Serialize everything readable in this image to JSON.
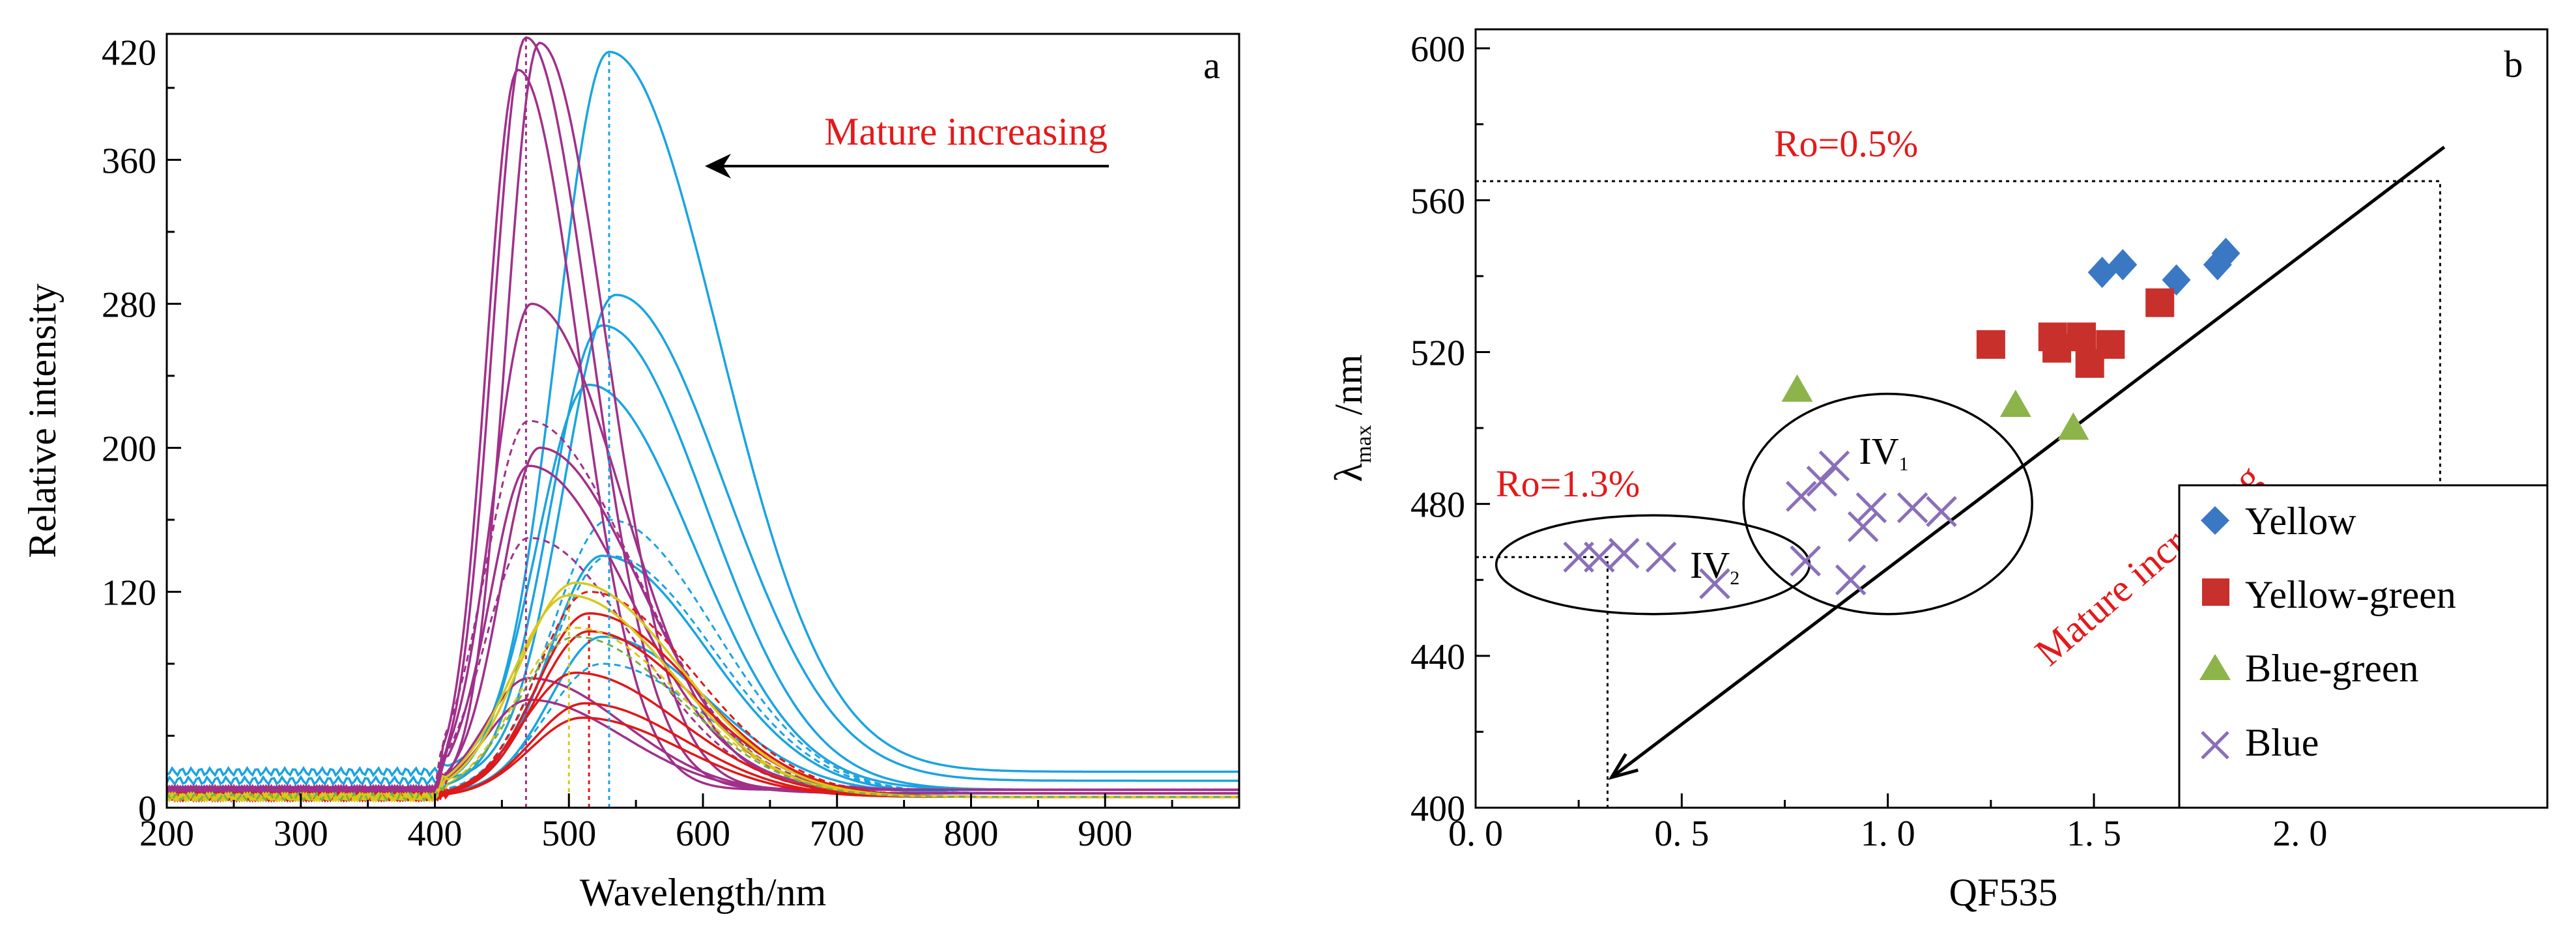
{
  "colors": {
    "blue": "#1BA3E0",
    "purple": "#A0308A",
    "red": "#E01818",
    "yellow": "#D8C81A",
    "green": "#77B04A",
    "black": "#000000",
    "annot_red": "#E31A1C",
    "diamond": "#3A78C4",
    "square": "#C8302C",
    "triangle": "#8CB44A",
    "cross": "#8A6FB8"
  },
  "chart_data": [
    {
      "type": "line",
      "panel_label": "a",
      "xlabel": "Wavelength/nm",
      "ylabel": "Relative intensity",
      "xlim": [
        200,
        1000
      ],
      "ylim": [
        0,
        430
      ],
      "xticks": [
        "200",
        "300",
        "400",
        "500",
        "600",
        "700",
        "800",
        "900"
      ],
      "yticks": [
        "0",
        "120",
        "200",
        "280",
        "360",
        "420"
      ],
      "annotation": "Mature increasing",
      "series": [
        {
          "name": "blue-1",
          "color": "blue",
          "peak_x": 530,
          "peak_y": 420,
          "width_l": 55,
          "width_r": 115,
          "baseline": 20,
          "dashed": false
        },
        {
          "name": "blue-2",
          "color": "blue",
          "peak_x": 535,
          "peak_y": 285,
          "width_l": 55,
          "width_r": 115,
          "baseline": 15,
          "dashed": false
        },
        {
          "name": "blue-3",
          "color": "blue",
          "peak_x": 525,
          "peak_y": 268,
          "width_l": 55,
          "width_r": 110,
          "baseline": 10,
          "dashed": false
        },
        {
          "name": "blue-4",
          "color": "blue",
          "peak_x": 515,
          "peak_y": 235,
          "width_l": 55,
          "width_r": 110,
          "baseline": 10,
          "dashed": false
        },
        {
          "name": "blue-5",
          "color": "blue",
          "peak_x": 525,
          "peak_y": 140,
          "width_l": 55,
          "width_r": 110,
          "baseline": 8,
          "dashed": false
        },
        {
          "name": "blue-6",
          "color": "blue",
          "peak_x": 525,
          "peak_y": 95,
          "width_l": 55,
          "width_r": 110,
          "baseline": 8,
          "dashed": false
        },
        {
          "name": "blue-d1",
          "color": "blue",
          "peak_x": 530,
          "peak_y": 160,
          "width_l": 60,
          "width_r": 110,
          "baseline": 8,
          "dashed": true
        },
        {
          "name": "blue-d2",
          "color": "blue",
          "peak_x": 530,
          "peak_y": 140,
          "width_l": 60,
          "width_r": 110,
          "baseline": 8,
          "dashed": true
        },
        {
          "name": "blue-d3",
          "color": "blue",
          "peak_x": 525,
          "peak_y": 80,
          "width_l": 60,
          "width_r": 110,
          "baseline": 6,
          "dashed": true
        },
        {
          "name": "purple-1",
          "color": "purple",
          "peak_x": 468,
          "peak_y": 428,
          "width_l": 35,
          "width_r": 68,
          "baseline": 10,
          "dashed": false
        },
        {
          "name": "purple-2",
          "color": "purple",
          "peak_x": 478,
          "peak_y": 425,
          "width_l": 35,
          "width_r": 70,
          "baseline": 10,
          "dashed": false
        },
        {
          "name": "purple-3",
          "color": "purple",
          "peak_x": 462,
          "peak_y": 410,
          "width_l": 33,
          "width_r": 64,
          "baseline": 10,
          "dashed": false
        },
        {
          "name": "purple-4",
          "color": "purple",
          "peak_x": 472,
          "peak_y": 280,
          "width_l": 40,
          "width_r": 95,
          "baseline": 10,
          "dashed": false
        },
        {
          "name": "purple-5",
          "color": "purple",
          "peak_x": 478,
          "peak_y": 200,
          "width_l": 40,
          "width_r": 105,
          "baseline": 10,
          "dashed": false
        },
        {
          "name": "purple-6",
          "color": "purple",
          "peak_x": 470,
          "peak_y": 190,
          "width_l": 40,
          "width_r": 105,
          "baseline": 10,
          "dashed": false
        },
        {
          "name": "purple-7",
          "color": "purple",
          "peak_x": 470,
          "peak_y": 72,
          "width_l": 45,
          "width_r": 100,
          "baseline": 8,
          "dashed": false
        },
        {
          "name": "purple-8",
          "color": "purple",
          "peak_x": 470,
          "peak_y": 60,
          "width_l": 45,
          "width_r": 100,
          "baseline": 8,
          "dashed": false
        },
        {
          "name": "purple-d1",
          "color": "purple",
          "peak_x": 470,
          "peak_y": 215,
          "width_l": 45,
          "width_r": 110,
          "baseline": 10,
          "dashed": true
        },
        {
          "name": "purple-d2",
          "color": "purple",
          "peak_x": 470,
          "peak_y": 150,
          "width_l": 45,
          "width_r": 110,
          "baseline": 8,
          "dashed": true
        },
        {
          "name": "red-1",
          "color": "red",
          "peak_x": 515,
          "peak_y": 108,
          "width_l": 55,
          "width_r": 110,
          "baseline": 6,
          "dashed": false
        },
        {
          "name": "red-2",
          "color": "red",
          "peak_x": 515,
          "peak_y": 98,
          "width_l": 55,
          "width_r": 110,
          "baseline": 6,
          "dashed": false
        },
        {
          "name": "red-3",
          "color": "red",
          "peak_x": 505,
          "peak_y": 75,
          "width_l": 55,
          "width_r": 110,
          "baseline": 6,
          "dashed": false
        },
        {
          "name": "red-4",
          "color": "red",
          "peak_x": 512,
          "peak_y": 58,
          "width_l": 55,
          "width_r": 105,
          "baseline": 6,
          "dashed": false
        },
        {
          "name": "red-5",
          "color": "red",
          "peak_x": 510,
          "peak_y": 50,
          "width_l": 55,
          "width_r": 105,
          "baseline": 6,
          "dashed": false
        },
        {
          "name": "red-d1",
          "color": "red",
          "peak_x": 515,
          "peak_y": 120,
          "width_l": 55,
          "width_r": 110,
          "baseline": 6,
          "dashed": true
        },
        {
          "name": "yellow-1",
          "color": "yellow",
          "peak_x": 505,
          "peak_y": 125,
          "width_l": 60,
          "width_r": 110,
          "baseline": 6,
          "dashed": false
        },
        {
          "name": "yellow-2",
          "color": "yellow",
          "peak_x": 500,
          "peak_y": 118,
          "width_l": 60,
          "width_r": 110,
          "baseline": 6,
          "dashed": false
        },
        {
          "name": "yellow-d1",
          "color": "yellow",
          "peak_x": 505,
          "peak_y": 100,
          "width_l": 60,
          "width_r": 110,
          "baseline": 6,
          "dashed": true
        },
        {
          "name": "green-d1",
          "color": "green",
          "peak_x": 505,
          "peak_y": 95,
          "width_l": 60,
          "width_r": 110,
          "baseline": 6,
          "dashed": true
        }
      ],
      "markers": [
        {
          "x": 468,
          "to_y": 428,
          "color": "purple"
        },
        {
          "x": 530,
          "to_y": 420,
          "color": "blue"
        },
        {
          "x": 515,
          "to_y": 108,
          "color": "red"
        },
        {
          "x": 500,
          "to_y": 122,
          "color": "yellow"
        }
      ]
    },
    {
      "type": "scatter",
      "panel_label": "b",
      "xlabel": "QF535",
      "ylabel_main": "λ",
      "ylabel_sub": "max",
      "ylabel_unit": " /nm",
      "xlim": [
        0.0,
        2.6
      ],
      "ylim": [
        400,
        605
      ],
      "xticks": [
        {
          "value": 0.0,
          "label": "0. 0"
        },
        {
          "value": 0.5,
          "label": "0. 5"
        },
        {
          "value": 1.0,
          "label": "1. 0"
        },
        {
          "value": 1.5,
          "label": "1. 5"
        },
        {
          "value": 2.0,
          "label": "2. 0"
        }
      ],
      "yticks": [
        400,
        440,
        480,
        520,
        560,
        600
      ],
      "annotation": "Mature increasing",
      "trend_line": {
        "x1": 2.35,
        "y1": 574,
        "x2": 0.33,
        "y2": 408
      },
      "ro_high": {
        "label": "Ro=0.5%",
        "x": 2.34,
        "y": 565
      },
      "ro_low": {
        "label": "Ro=1.3%",
        "x": 0.32,
        "y": 466
      },
      "ellipses": [
        {
          "label_main": "IV",
          "label_sub": "2",
          "cx": 0.43,
          "cy": 464,
          "rx": 0.38,
          "ry": 13
        },
        {
          "label_main": "IV",
          "label_sub": "1",
          "cx": 1.0,
          "cy": 480,
          "rx": 0.35,
          "ry": 29
        }
      ],
      "series": [
        {
          "name": "Yellow",
          "marker": "diamond",
          "color": "diamond",
          "points": [
            [
              1.52,
              541
            ],
            [
              1.57,
              543
            ],
            [
              1.7,
              539
            ],
            [
              1.8,
              543
            ],
            [
              1.82,
              546
            ]
          ]
        },
        {
          "name": "Yellow-green",
          "marker": "square",
          "color": "square",
          "points": [
            [
              1.25,
              522
            ],
            [
              1.4,
              524
            ],
            [
              1.41,
              521
            ],
            [
              1.47,
              524
            ],
            [
              1.49,
              517
            ],
            [
              1.54,
              522
            ],
            [
              1.66,
              533
            ]
          ]
        },
        {
          "name": "Blue-green",
          "marker": "triangle",
          "color": "triangle",
          "points": [
            [
              0.78,
              510
            ],
            [
              1.31,
              506
            ],
            [
              1.45,
              500
            ]
          ]
        },
        {
          "name": "Blue",
          "marker": "cross",
          "color": "cross",
          "points": [
            [
              0.25,
              466
            ],
            [
              0.3,
              466
            ],
            [
              0.36,
              467
            ],
            [
              0.45,
              466
            ],
            [
              0.58,
              459
            ],
            [
              0.79,
              482
            ],
            [
              0.84,
              486
            ],
            [
              0.87,
              490
            ],
            [
              0.8,
              465
            ],
            [
              0.91,
              460
            ],
            [
              0.94,
              474
            ],
            [
              0.96,
              479
            ],
            [
              1.06,
              479
            ],
            [
              1.13,
              478
            ]
          ]
        }
      ]
    }
  ]
}
